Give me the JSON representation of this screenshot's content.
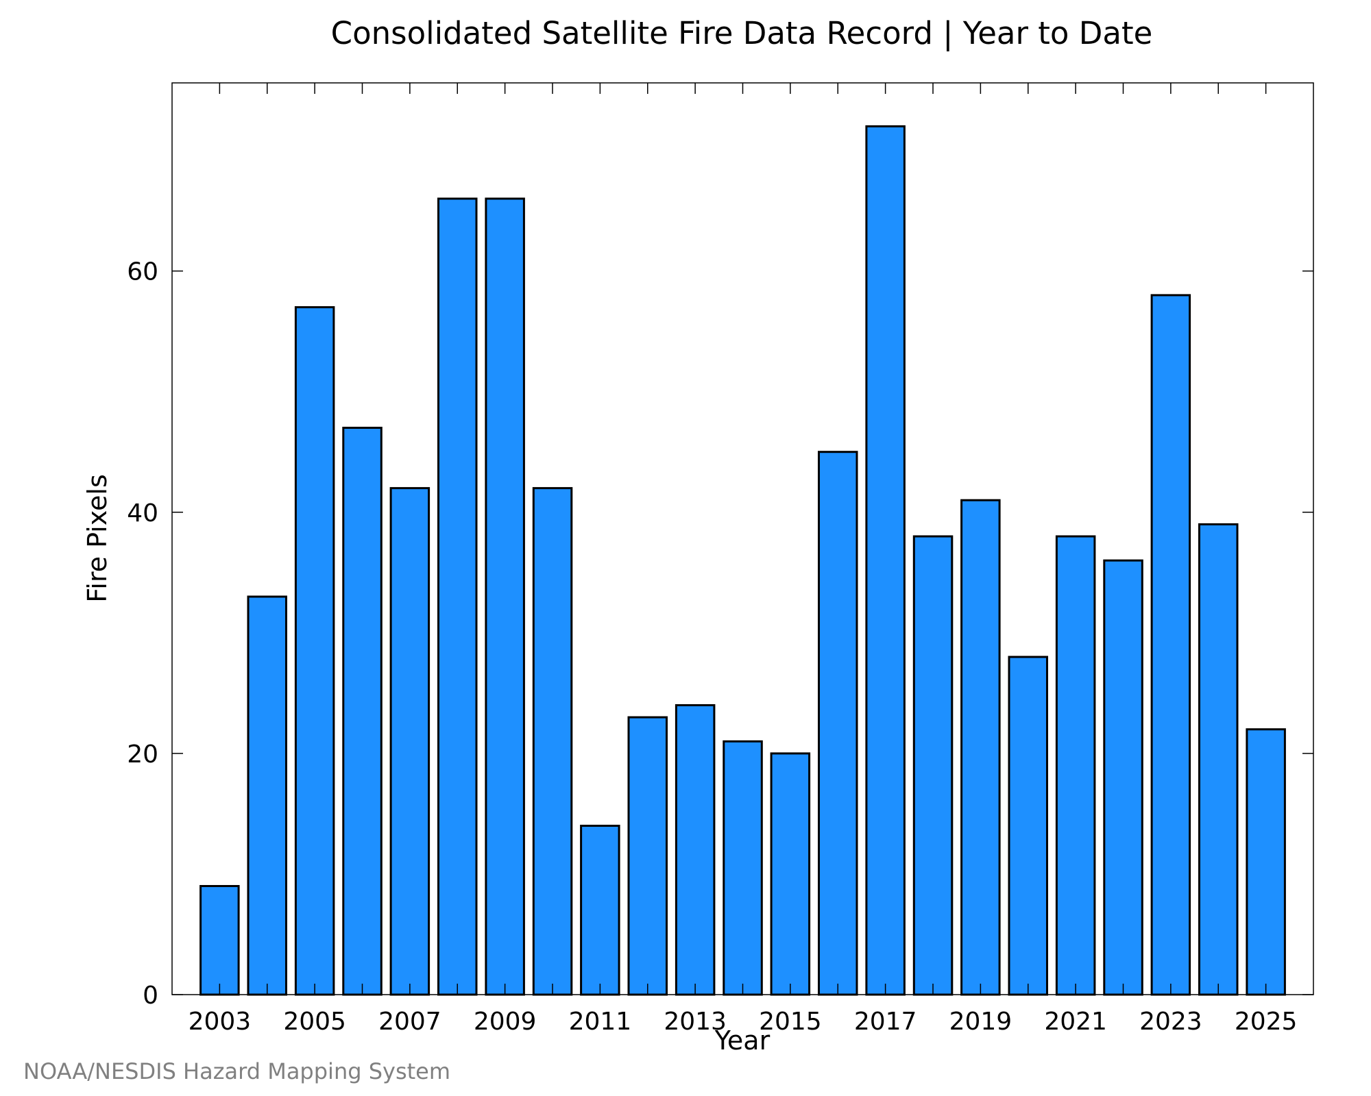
{
  "chart_data": {
    "type": "bar",
    "title": "Consolidated Satellite Fire Data Record | Year to Date",
    "xlabel": "Year",
    "ylabel": "Fire Pixels",
    "categories": [
      "2003",
      "2004",
      "2005",
      "2006",
      "2007",
      "2008",
      "2009",
      "2010",
      "2011",
      "2012",
      "2013",
      "2014",
      "2015",
      "2016",
      "2017",
      "2018",
      "2019",
      "2020",
      "2021",
      "2022",
      "2023",
      "2024",
      "2025"
    ],
    "values": [
      9,
      33,
      57,
      47,
      42,
      66,
      66,
      42,
      14,
      23,
      24,
      21,
      20,
      45,
      72,
      38,
      41,
      28,
      38,
      36,
      58,
      39,
      22
    ],
    "x_tick_labels": [
      "2003",
      "2005",
      "2007",
      "2009",
      "2011",
      "2013",
      "2015",
      "2017",
      "2019",
      "2021",
      "2023",
      "2025"
    ],
    "y_ticks": [
      0,
      20,
      40,
      60
    ],
    "ylim": [
      0,
      75.6
    ],
    "grid": false,
    "legend": "none",
    "bar_color": "#1e90ff"
  },
  "credit": "NOAA/NESDIS Hazard Mapping System"
}
